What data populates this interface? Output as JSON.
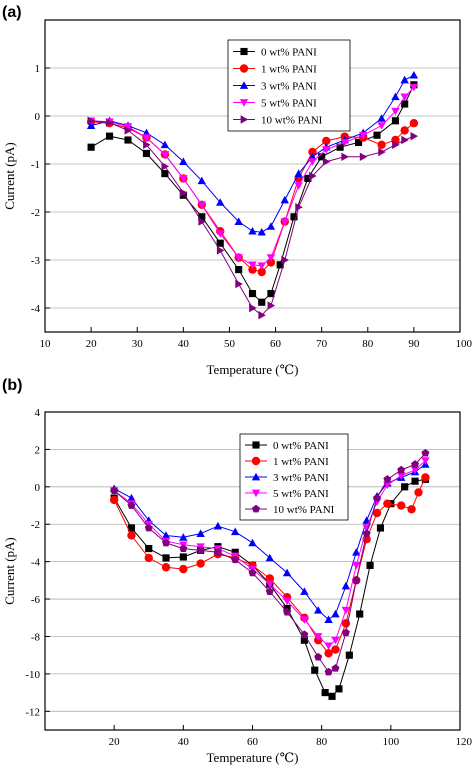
{
  "panels": [
    {
      "label": "(a)",
      "chart_data": {
        "type": "scatter",
        "xlabel": "Temperature (℃)",
        "ylabel": "Current (pA)",
        "xlim": [
          10,
          100
        ],
        "ylim": [
          -4.5,
          2.0
        ],
        "xticks": [
          10,
          20,
          30,
          40,
          50,
          60,
          70,
          80,
          90,
          100
        ],
        "yticks": [
          -4,
          -3,
          -2,
          -1,
          0,
          1
        ],
        "grid": "horizontal",
        "legend_position": "top-center",
        "series": [
          {
            "name": "0 wt% PANI",
            "color": "#000000",
            "marker": "square",
            "points": [
              [
                20,
                -0.65
              ],
              [
                24,
                -0.42
              ],
              [
                28,
                -0.5
              ],
              [
                32,
                -0.78
              ],
              [
                36,
                -1.2
              ],
              [
                40,
                -1.65
              ],
              [
                44,
                -2.1
              ],
              [
                48,
                -2.65
              ],
              [
                52,
                -3.2
              ],
              [
                55,
                -3.7
              ],
              [
                57,
                -3.88
              ],
              [
                59,
                -3.7
              ],
              [
                61,
                -3.1
              ],
              [
                64,
                -2.1
              ],
              [
                67,
                -1.3
              ],
              [
                70,
                -0.85
              ],
              [
                74,
                -0.65
              ],
              [
                78,
                -0.55
              ],
              [
                82,
                -0.4
              ],
              [
                86,
                -0.1
              ],
              [
                88,
                0.25
              ],
              [
                90,
                0.65
              ]
            ]
          },
          {
            "name": "1 wt% PANI",
            "color": "#ff0000",
            "marker": "circle",
            "points": [
              [
                20,
                -0.12
              ],
              [
                24,
                -0.15
              ],
              [
                28,
                -0.25
              ],
              [
                32,
                -0.45
              ],
              [
                36,
                -0.8
              ],
              [
                40,
                -1.3
              ],
              [
                44,
                -1.85
              ],
              [
                48,
                -2.4
              ],
              [
                52,
                -2.95
              ],
              [
                55,
                -3.2
              ],
              [
                57,
                -3.25
              ],
              [
                59,
                -3.05
              ],
              [
                62,
                -2.2
              ],
              [
                65,
                -1.3
              ],
              [
                68,
                -0.75
              ],
              [
                71,
                -0.52
              ],
              [
                75,
                -0.43
              ],
              [
                79,
                -0.45
              ],
              [
                83,
                -0.6
              ],
              [
                86,
                -0.5
              ],
              [
                88,
                -0.3
              ],
              [
                90,
                -0.15
              ]
            ]
          },
          {
            "name": "3 wt% PANI",
            "color": "#0000ff",
            "marker": "triangle-up",
            "points": [
              [
                20,
                -0.2
              ],
              [
                24,
                -0.1
              ],
              [
                28,
                -0.2
              ],
              [
                32,
                -0.35
              ],
              [
                36,
                -0.6
              ],
              [
                40,
                -0.95
              ],
              [
                44,
                -1.35
              ],
              [
                48,
                -1.8
              ],
              [
                52,
                -2.2
              ],
              [
                55,
                -2.4
              ],
              [
                57,
                -2.42
              ],
              [
                59,
                -2.3
              ],
              [
                62,
                -1.75
              ],
              [
                65,
                -1.2
              ],
              [
                68,
                -0.85
              ],
              [
                71,
                -0.65
              ],
              [
                75,
                -0.5
              ],
              [
                79,
                -0.35
              ],
              [
                83,
                -0.05
              ],
              [
                86,
                0.4
              ],
              [
                88,
                0.75
              ],
              [
                90,
                0.85
              ]
            ]
          },
          {
            "name": "5 wt% PANI",
            "color": "#ff00ff",
            "marker": "triangle-down",
            "points": [
              [
                20,
                -0.1
              ],
              [
                24,
                -0.12
              ],
              [
                28,
                -0.22
              ],
              [
                32,
                -0.45
              ],
              [
                36,
                -0.8
              ],
              [
                40,
                -1.3
              ],
              [
                44,
                -1.85
              ],
              [
                48,
                -2.45
              ],
              [
                52,
                -2.95
              ],
              [
                55,
                -3.1
              ],
              [
                57,
                -3.12
              ],
              [
                59,
                -2.95
              ],
              [
                62,
                -2.2
              ],
              [
                65,
                -1.45
              ],
              [
                68,
                -0.95
              ],
              [
                71,
                -0.7
              ],
              [
                75,
                -0.55
              ],
              [
                79,
                -0.4
              ],
              [
                83,
                -0.2
              ],
              [
                86,
                0.1
              ],
              [
                88,
                0.4
              ],
              [
                90,
                0.6
              ]
            ]
          },
          {
            "name": "10 wt% PANI",
            "color": "#800080",
            "marker": "triangle-right",
            "points": [
              [
                20,
                -0.1
              ],
              [
                24,
                -0.14
              ],
              [
                28,
                -0.3
              ],
              [
                32,
                -0.6
              ],
              [
                36,
                -1.05
              ],
              [
                40,
                -1.6
              ],
              [
                44,
                -2.2
              ],
              [
                48,
                -2.8
              ],
              [
                52,
                -3.5
              ],
              [
                55,
                -4.0
              ],
              [
                57,
                -4.15
              ],
              [
                59,
                -3.95
              ],
              [
                62,
                -3.0
              ],
              [
                65,
                -1.9
              ],
              [
                68,
                -1.25
              ],
              [
                71,
                -0.95
              ],
              [
                75,
                -0.85
              ],
              [
                79,
                -0.85
              ],
              [
                83,
                -0.75
              ],
              [
                86,
                -0.6
              ],
              [
                88,
                -0.5
              ],
              [
                90,
                -0.42
              ]
            ]
          }
        ]
      }
    },
    {
      "label": "(b)",
      "chart_data": {
        "type": "scatter",
        "xlabel": "Temperature (℃)",
        "ylabel": "Current (pA)",
        "xlim": [
          0,
          120
        ],
        "ylim": [
          -13,
          4
        ],
        "xticks": [
          20,
          40,
          60,
          80,
          100,
          120
        ],
        "xtick_labels": [
          "20",
          "40",
          "60",
          "80",
          "100",
          "120"
        ],
        "yticks": [
          -12,
          -10,
          -8,
          -6,
          -4,
          -2,
          0,
          2,
          4
        ],
        "grid": "horizontal",
        "legend_position": "top-right",
        "series": [
          {
            "name": "0 wt% PANI",
            "color": "#000000",
            "marker": "square",
            "points": [
              [
                20,
                -0.6
              ],
              [
                25,
                -2.2
              ],
              [
                30,
                -3.3
              ],
              [
                35,
                -3.8
              ],
              [
                40,
                -3.75
              ],
              [
                45,
                -3.4
              ],
              [
                50,
                -3.2
              ],
              [
                55,
                -3.5
              ],
              [
                60,
                -4.2
              ],
              [
                65,
                -5.2
              ],
              [
                70,
                -6.5
              ],
              [
                75,
                -8.2
              ],
              [
                78,
                -9.8
              ],
              [
                81,
                -11.0
              ],
              [
                83,
                -11.2
              ],
              [
                85,
                -10.8
              ],
              [
                88,
                -9.0
              ],
              [
                91,
                -6.8
              ],
              [
                94,
                -4.2
              ],
              [
                97,
                -2.2
              ],
              [
                100,
                -0.9
              ],
              [
                104,
                0.0
              ],
              [
                107,
                0.3
              ],
              [
                110,
                0.4
              ]
            ]
          },
          {
            "name": "1 wt% PANI",
            "color": "#ff0000",
            "marker": "circle",
            "points": [
              [
                20,
                -0.7
              ],
              [
                25,
                -2.6
              ],
              [
                30,
                -3.8
              ],
              [
                35,
                -4.3
              ],
              [
                40,
                -4.4
              ],
              [
                45,
                -4.1
              ],
              [
                50,
                -3.6
              ],
              [
                55,
                -3.8
              ],
              [
                60,
                -4.2
              ],
              [
                65,
                -4.9
              ],
              [
                70,
                -5.9
              ],
              [
                75,
                -7.0
              ],
              [
                79,
                -8.2
              ],
              [
                82,
                -8.9
              ],
              [
                84,
                -8.7
              ],
              [
                87,
                -7.3
              ],
              [
                90,
                -5.0
              ],
              [
                93,
                -2.8
              ],
              [
                96,
                -1.4
              ],
              [
                99,
                -0.9
              ],
              [
                103,
                -1.0
              ],
              [
                106,
                -1.2
              ],
              [
                108,
                -0.3
              ],
              [
                110,
                0.5
              ]
            ]
          },
          {
            "name": "3 wt% PANI",
            "color": "#0000ff",
            "marker": "triangle-up",
            "points": [
              [
                20,
                -0.1
              ],
              [
                25,
                -0.6
              ],
              [
                30,
                -1.8
              ],
              [
                35,
                -2.6
              ],
              [
                40,
                -2.7
              ],
              [
                45,
                -2.5
              ],
              [
                50,
                -2.1
              ],
              [
                55,
                -2.4
              ],
              [
                60,
                -3.0
              ],
              [
                65,
                -3.8
              ],
              [
                70,
                -4.6
              ],
              [
                75,
                -5.6
              ],
              [
                79,
                -6.6
              ],
              [
                82,
                -7.1
              ],
              [
                84,
                -6.8
              ],
              [
                87,
                -5.3
              ],
              [
                90,
                -3.5
              ],
              [
                93,
                -1.8
              ],
              [
                96,
                -0.5
              ],
              [
                99,
                0.2
              ],
              [
                103,
                0.5
              ],
              [
                107,
                0.8
              ],
              [
                110,
                1.2
              ]
            ]
          },
          {
            "name": "5 wt% PANI",
            "color": "#ff00ff",
            "marker": "triangle-down",
            "points": [
              [
                20,
                -0.2
              ],
              [
                25,
                -0.9
              ],
              [
                30,
                -2.0
              ],
              [
                35,
                -2.9
              ],
              [
                40,
                -3.1
              ],
              [
                45,
                -3.2
              ],
              [
                50,
                -3.3
              ],
              [
                55,
                -3.7
              ],
              [
                60,
                -4.4
              ],
              [
                65,
                -5.2
              ],
              [
                70,
                -6.1
              ],
              [
                75,
                -7.1
              ],
              [
                79,
                -8.0
              ],
              [
                82,
                -8.5
              ],
              [
                84,
                -8.2
              ],
              [
                87,
                -6.6
              ],
              [
                90,
                -4.2
              ],
              [
                93,
                -2.2
              ],
              [
                96,
                -0.8
              ],
              [
                99,
                0.1
              ],
              [
                103,
                0.6
              ],
              [
                107,
                0.9
              ],
              [
                110,
                1.4
              ]
            ]
          },
          {
            "name": "10 wt% PANI",
            "color": "#800080",
            "marker": "pentagon",
            "points": [
              [
                20,
                -0.2
              ],
              [
                25,
                -1.0
              ],
              [
                30,
                -2.2
              ],
              [
                35,
                -3.0
              ],
              [
                40,
                -3.3
              ],
              [
                45,
                -3.4
              ],
              [
                50,
                -3.5
              ],
              [
                55,
                -3.9
              ],
              [
                60,
                -4.6
              ],
              [
                65,
                -5.6
              ],
              [
                70,
                -6.7
              ],
              [
                75,
                -7.9
              ],
              [
                79,
                -9.1
              ],
              [
                82,
                -9.9
              ],
              [
                84,
                -9.7
              ],
              [
                87,
                -7.8
              ],
              [
                90,
                -5.0
              ],
              [
                93,
                -2.5
              ],
              [
                96,
                -0.6
              ],
              [
                99,
                0.4
              ],
              [
                103,
                0.9
              ],
              [
                107,
                1.2
              ],
              [
                110,
                1.8
              ]
            ]
          }
        ]
      }
    }
  ]
}
